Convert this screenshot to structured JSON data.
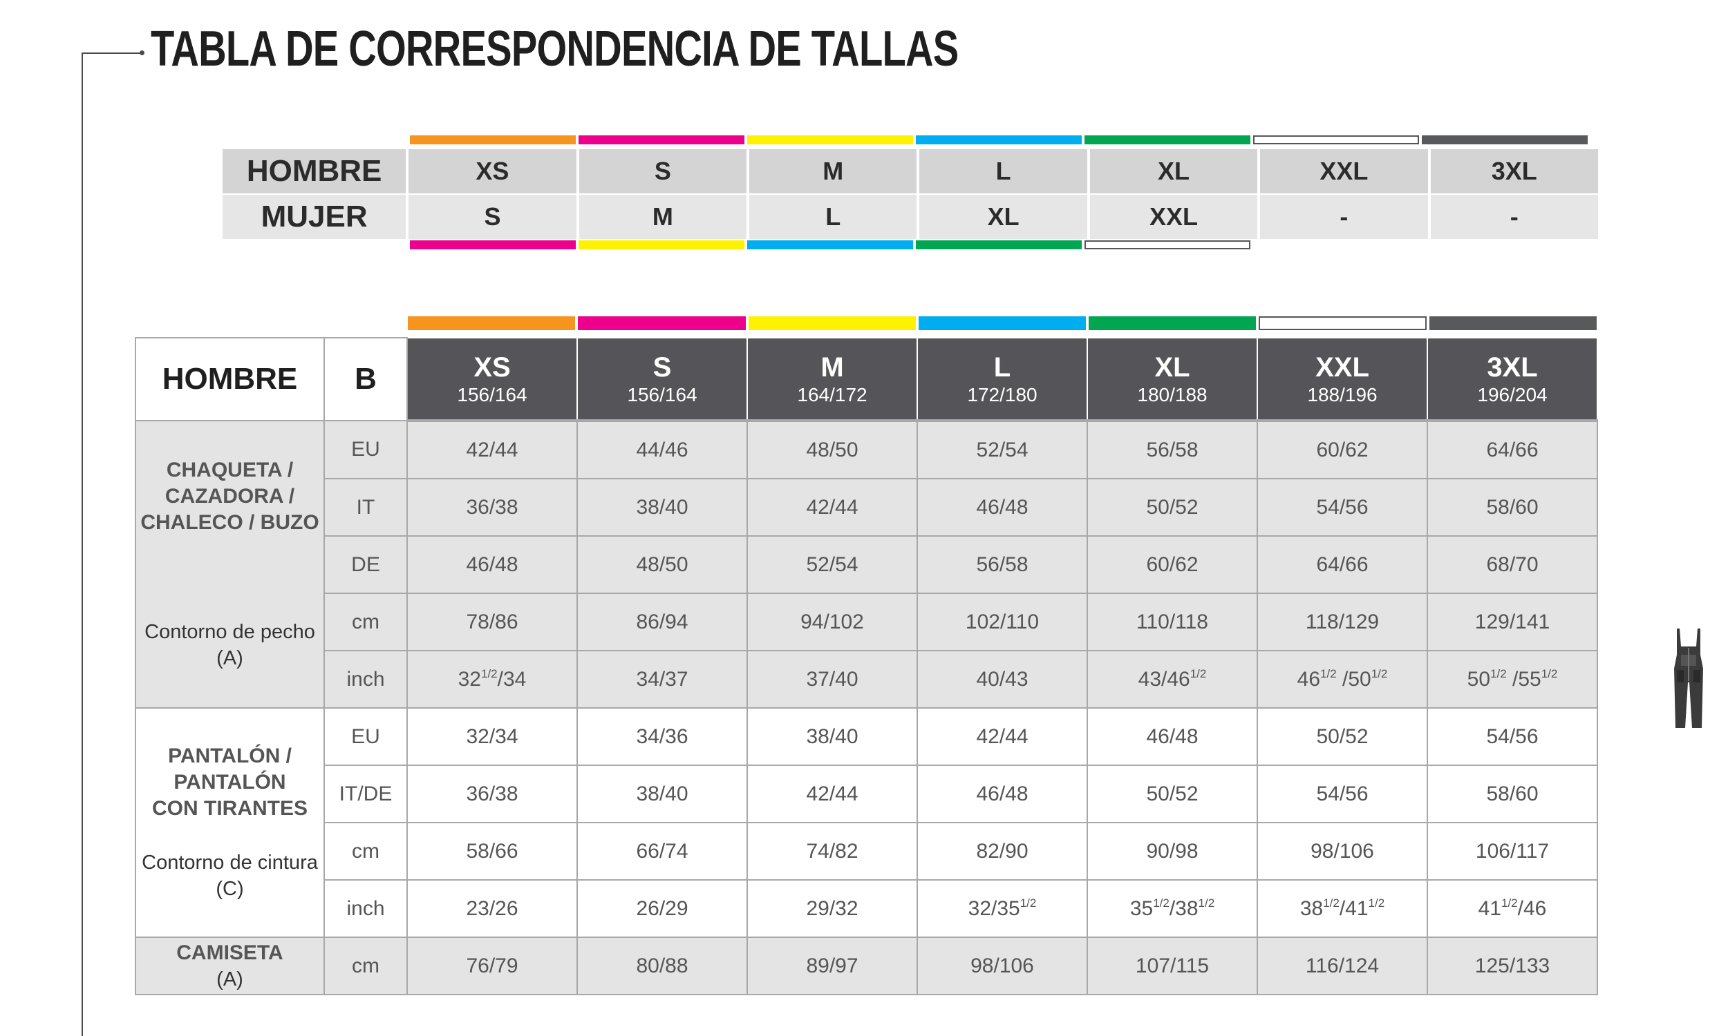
{
  "title": "TABLA DE CORRESPONDENCIA DE TALLAS",
  "colors": {
    "orange": "#f7941d",
    "magenta": "#ec008c",
    "yellow": "#fff200",
    "blue": "#00aeef",
    "green": "#00a651",
    "white": "#ffffff",
    "gray": "#58595b"
  },
  "equivalence": {
    "row1_label": "HOMBRE",
    "row2_label": "MUJER",
    "hombre": [
      "XS",
      "S",
      "M",
      "L",
      "XL",
      "XXL",
      "3XL"
    ],
    "mujer": [
      "S",
      "M",
      "L",
      "XL",
      "XXL",
      "-",
      "-"
    ],
    "top_colors": [
      "orange",
      "magenta",
      "yellow",
      "blue",
      "green",
      "white",
      "gray"
    ],
    "bottom_colors": [
      "magenta",
      "yellow",
      "blue",
      "green",
      "white"
    ]
  },
  "main": {
    "label": "HOMBRE",
    "sub_label": "B",
    "sizes": [
      {
        "size": "XS",
        "range": "156/164"
      },
      {
        "size": "S",
        "range": "156/164"
      },
      {
        "size": "M",
        "range": "164/172"
      },
      {
        "size": "L",
        "range": "172/180"
      },
      {
        "size": "XL",
        "range": "180/188"
      },
      {
        "size": "XXL",
        "range": "188/196"
      },
      {
        "size": "3XL",
        "range": "196/204"
      }
    ],
    "groups": [
      {
        "name_lines": [
          "CHAQUETA /",
          "CAZADORA /",
          "CHALECO / BUZO"
        ],
        "sub": "Contorno de pecho (A)",
        "rows": [
          {
            "unit": "EU",
            "values": [
              "42/44",
              "44/46",
              "48/50",
              "52/54",
              "56/58",
              "60/62",
              "64/66"
            ]
          },
          {
            "unit": "IT",
            "values": [
              "36/38",
              "38/40",
              "42/44",
              "46/48",
              "50/52",
              "54/56",
              "58/60"
            ]
          },
          {
            "unit": "DE",
            "values": [
              "46/48",
              "48/50",
              "52/54",
              "56/58",
              "60/62",
              "64/66",
              "68/70"
            ]
          },
          {
            "unit": "cm",
            "values": [
              "78/86",
              "86/94",
              "94/102",
              "102/110",
              "110/118",
              "118/129",
              "129/141"
            ]
          },
          {
            "unit": "inch",
            "values": [
              "32^1/2/34",
              "34/37",
              "37/40",
              "40/43",
              "43/46^1/2",
              "46^1/2 /50^1/2",
              "50^1/2 /55^1/2"
            ]
          }
        ]
      },
      {
        "name_lines": [
          "PANTALÓN /",
          "PANTALÓN",
          "CON TIRANTES"
        ],
        "sub": "Contorno de cintura (C)",
        "rows": [
          {
            "unit": "EU",
            "values": [
              "32/34",
              "34/36",
              "38/40",
              "42/44",
              "46/48",
              "50/52",
              "54/56"
            ]
          },
          {
            "unit": "IT/DE",
            "values": [
              "36/38",
              "38/40",
              "42/44",
              "46/48",
              "50/52",
              "54/56",
              "58/60"
            ]
          },
          {
            "unit": "cm",
            "values": [
              "58/66",
              "66/74",
              "74/82",
              "82/90",
              "90/98",
              "98/106",
              "106/117"
            ]
          },
          {
            "unit": "inch",
            "values": [
              "23/26",
              "26/29",
              "29/32",
              "32/35^1/2",
              "35^1/2/38^1/2",
              "38^1/2/41^1/2",
              "41^1/2/46"
            ]
          }
        ]
      },
      {
        "name_lines": [
          "CAMISETA"
        ],
        "sub": "(A)",
        "rows": [
          {
            "unit": "cm",
            "values": [
              "76/79",
              "80/88",
              "89/97",
              "98/106",
              "107/115",
              "116/124",
              "125/133"
            ]
          }
        ]
      }
    ]
  },
  "icons": {
    "garment": "overalls-icon"
  }
}
